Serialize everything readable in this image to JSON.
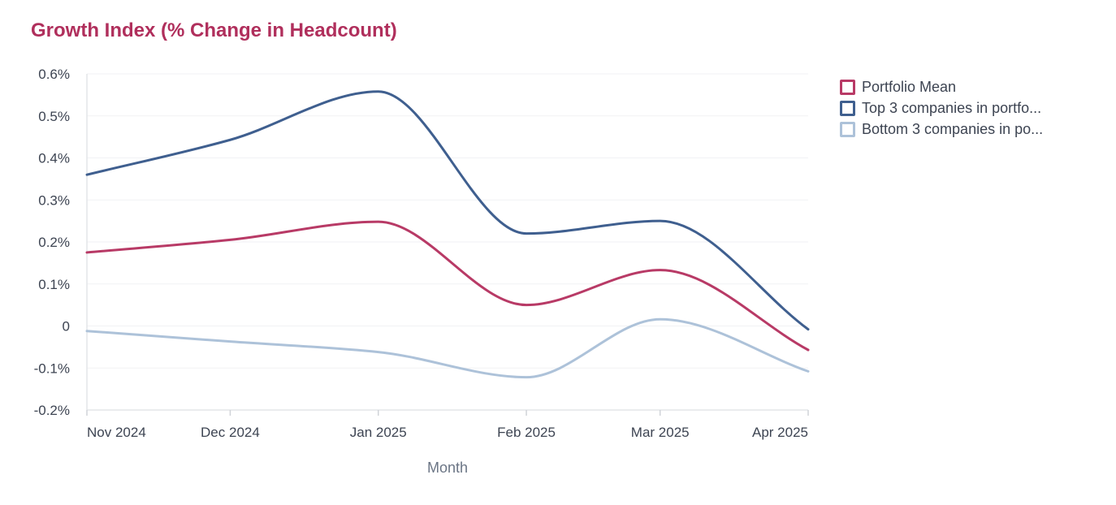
{
  "chart_data": {
    "type": "line",
    "title": "Growth Index (% Change in Headcount)",
    "xlabel": "Month",
    "ylabel": "",
    "categories": [
      "Nov 2024",
      "Dec 2024",
      "Jan 2025",
      "Feb 2025",
      "Mar 2025",
      "Apr 2025"
    ],
    "x_days": [
      0,
      30,
      61,
      92,
      120,
      151
    ],
    "ylim": [
      -0.2,
      0.6
    ],
    "yticks": [
      "0.6%",
      "0.5%",
      "0.4%",
      "0.3%",
      "0.2%",
      "0.1%",
      "0",
      "-0.1%",
      "-0.2%"
    ],
    "grid": true,
    "legend_position": "top-right",
    "series": [
      {
        "name": "Portfolio Mean",
        "color": "#b83a66",
        "values": [
          0.175,
          0.205,
          0.248,
          0.05,
          0.133,
          -0.057
        ]
      },
      {
        "name": "Top 3 companies in portfo...",
        "color": "#3f5f8f",
        "values": [
          0.36,
          0.443,
          0.558,
          0.22,
          0.25,
          -0.008
        ]
      },
      {
        "name": "Bottom 3 companies in po...",
        "color": "#adc2d9",
        "values": [
          -0.012,
          -0.037,
          -0.062,
          -0.122,
          0.016,
          -0.108
        ]
      }
    ]
  }
}
